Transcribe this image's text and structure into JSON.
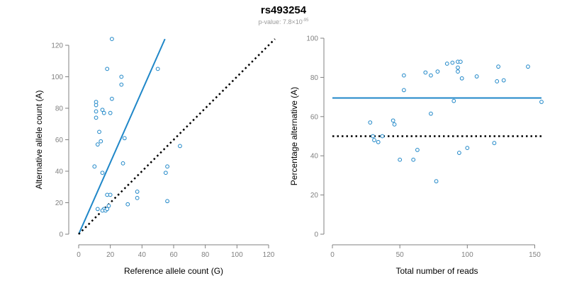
{
  "title": "rs493254",
  "subtitle": {
    "prefix": "p-value: 7.8×10",
    "exponent": "-95"
  },
  "colors": {
    "points": "#1f87c8",
    "fit_line": "#1f87c8",
    "reference_line": "#000000",
    "axis": "#808080"
  },
  "chart_data": [
    {
      "type": "scatter",
      "xlabel": "Reference allele count (G)",
      "ylabel": "Alternative allele count (A)",
      "xlim": [
        0,
        120
      ],
      "ylim": [
        0,
        120
      ],
      "xticks": [
        0,
        20,
        40,
        60,
        80,
        100,
        120
      ],
      "yticks": [
        0,
        20,
        40,
        60,
        80,
        100,
        120
      ],
      "points": [
        [
          21,
          124
        ],
        [
          18,
          105
        ],
        [
          50,
          105
        ],
        [
          27,
          100
        ],
        [
          27,
          95
        ],
        [
          21,
          86
        ],
        [
          11,
          84
        ],
        [
          11,
          82
        ],
        [
          11,
          78
        ],
        [
          15,
          79
        ],
        [
          16,
          77
        ],
        [
          20,
          77
        ],
        [
          11,
          74
        ],
        [
          13,
          65
        ],
        [
          29,
          61
        ],
        [
          14,
          59
        ],
        [
          12,
          57
        ],
        [
          64,
          56
        ],
        [
          28,
          45
        ],
        [
          10,
          43
        ],
        [
          56,
          43
        ],
        [
          15,
          39
        ],
        [
          55,
          39
        ],
        [
          37,
          27
        ],
        [
          18,
          25
        ],
        [
          20,
          25
        ],
        [
          37,
          23
        ],
        [
          56,
          21
        ],
        [
          31,
          19
        ],
        [
          19,
          18
        ],
        [
          16,
          16
        ],
        [
          12,
          16
        ],
        [
          15,
          15
        ],
        [
          17,
          15
        ],
        [
          18,
          16
        ]
      ],
      "lines": [
        {
          "kind": "fit",
          "style": "solid",
          "from": [
            0,
            0
          ],
          "to": [
            54.5,
            124
          ]
        },
        {
          "kind": "reference",
          "style": "dotted",
          "from": [
            0,
            0
          ],
          "to": [
            124,
            124
          ]
        }
      ],
      "grid": false
    },
    {
      "type": "scatter",
      "xlabel": "Total number of reads",
      "ylabel": "Percentage alternative (A)",
      "xlim": [
        0,
        155
      ],
      "ylim": [
        0,
        100
      ],
      "xticks": [
        0,
        50,
        100,
        150
      ],
      "yticks": [
        0,
        20,
        40,
        60,
        80,
        100
      ],
      "points": [
        [
          28,
          57
        ],
        [
          30,
          50
        ],
        [
          31,
          48
        ],
        [
          34,
          47
        ],
        [
          37,
          50
        ],
        [
          45,
          58
        ],
        [
          46,
          56
        ],
        [
          50,
          38
        ],
        [
          53,
          81
        ],
        [
          53,
          73.5
        ],
        [
          60,
          38
        ],
        [
          63,
          43
        ],
        [
          69,
          82.5
        ],
        [
          73,
          81
        ],
        [
          73,
          61.5
        ],
        [
          77,
          27
        ],
        [
          78,
          83
        ],
        [
          85,
          87
        ],
        [
          89,
          87.5
        ],
        [
          90,
          68
        ],
        [
          93,
          88
        ],
        [
          93,
          85
        ],
        [
          93,
          83
        ],
        [
          95,
          88
        ],
        [
          94,
          41.5
        ],
        [
          96,
          79.5
        ],
        [
          100,
          44
        ],
        [
          107,
          80.5
        ],
        [
          120,
          46.5
        ],
        [
          122,
          78
        ],
        [
          123,
          85.5
        ],
        [
          127,
          78.5
        ],
        [
          145,
          85.5
        ],
        [
          155,
          67.5
        ]
      ],
      "lines": [
        {
          "kind": "fit",
          "style": "solid",
          "y": 69.5,
          "x_range": [
            0,
            155
          ]
        },
        {
          "kind": "reference",
          "style": "dotted",
          "y": 50,
          "x_range": [
            0,
            155
          ]
        }
      ],
      "grid": false
    }
  ]
}
